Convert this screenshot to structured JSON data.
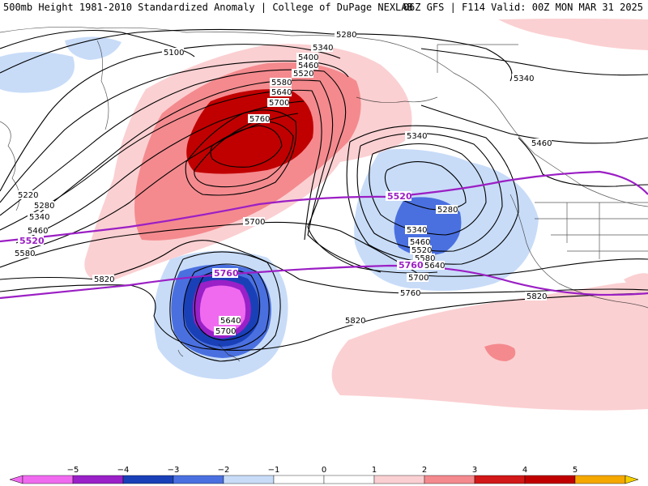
{
  "header": {
    "title_left": "500mb Height 1981-2010 Standardized Anomaly | College of DuPage NEXLAB",
    "title_right": "06Z GFS | F114 Valid: 00Z MON MAR 31 2025"
  },
  "colors": {
    "anom_neg5": "#f06af0",
    "anom_neg4": "#9a20c8",
    "anom_neg3": "#1a40b8",
    "anom_neg2": "#4a70e0",
    "anom_neg1": "#c8dcf8",
    "anom_pos1": "#fbd0d2",
    "anom_pos2": "#f48a8e",
    "anom_pos3": "#d21818",
    "anom_pos4": "#c00000",
    "anom_pos5": "#f5a800",
    "height_contour": "#000000",
    "marked_contour": "#9b1fc4"
  },
  "contour_labels": [
    {
      "text": "5280"
    },
    {
      "text": "5340"
    },
    {
      "text": "5400"
    },
    {
      "text": "5460"
    },
    {
      "text": "5520"
    },
    {
      "text": "5580"
    },
    {
      "text": "5640"
    },
    {
      "text": "5700"
    },
    {
      "text": "5760"
    },
    {
      "text": "5100"
    },
    {
      "text": "5340"
    },
    {
      "text": "5460"
    },
    {
      "text": "5220"
    },
    {
      "text": "5280"
    },
    {
      "text": "5340"
    },
    {
      "text": "5460"
    },
    {
      "text": "5580"
    },
    {
      "text": "5700"
    },
    {
      "text": "5340"
    },
    {
      "text": "5280"
    },
    {
      "text": "5340"
    },
    {
      "text": "5460"
    },
    {
      "text": "5520"
    },
    {
      "text": "5580"
    },
    {
      "text": "5640"
    },
    {
      "text": "5700"
    },
    {
      "text": "5760"
    },
    {
      "text": "5820"
    },
    {
      "text": "5820"
    },
    {
      "text": "5820"
    },
    {
      "text": "5640"
    },
    {
      "text": "5700"
    }
  ],
  "marked_contour_labels": [
    {
      "text": "5520"
    },
    {
      "text": "5520"
    },
    {
      "text": "5760"
    },
    {
      "text": "5760"
    }
  ],
  "colorbar": {
    "ticks": [
      "−5",
      "−4",
      "−3",
      "−2",
      "−1",
      "0",
      "1",
      "2",
      "3",
      "4",
      "5"
    ]
  }
}
